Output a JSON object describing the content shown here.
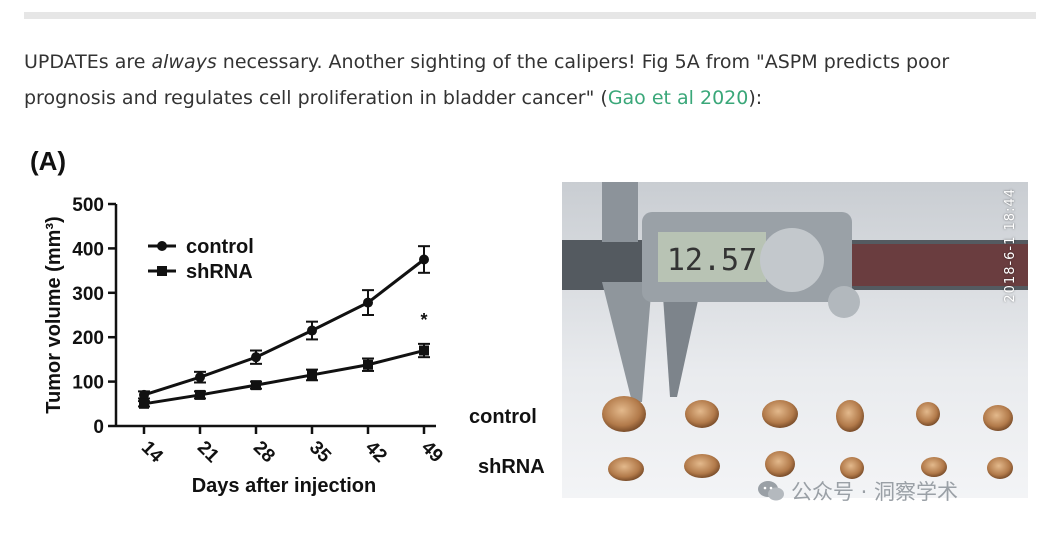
{
  "article": {
    "line1_a": "UPDATEs are ",
    "line1_em": "always",
    "line1_b": " necessary. Another sighting of the calipers! Fig 5A from \"ASPM predicts poor prognosis and regulates cell proliferation in bladder cancer\" (",
    "link_text": "Gao et al 2020",
    "line_end": "):"
  },
  "figure": {
    "panel_label": "(A)",
    "row_labels": [
      "control",
      "shRNA"
    ],
    "photo_stamp": "2018-6-1 18:44",
    "caliper_reading": "12.57"
  },
  "watermark": {
    "text": "公众号 · 洞察学术",
    "icon": "wechat-icon"
  },
  "chart_data": {
    "type": "line",
    "categories": [
      "14",
      "21",
      "28",
      "35",
      "42",
      "49"
    ],
    "xlabel": "Days after injection",
    "ylabel": "Tumor volume (mm³)",
    "ylim": [
      0,
      500
    ],
    "yticks": [
      "0",
      "100",
      "200",
      "300",
      "400",
      "500"
    ],
    "series": [
      {
        "name": "control",
        "marker": "circle",
        "values": [
          70,
          110,
          155,
          215,
          278,
          375
        ],
        "errors": [
          8,
          12,
          15,
          20,
          28,
          30
        ]
      },
      {
        "name": "shRNA",
        "marker": "square",
        "values": [
          50,
          70,
          92,
          115,
          138,
          170
        ],
        "errors": [
          6,
          8,
          8,
          12,
          14,
          15
        ]
      }
    ],
    "annotations": [
      {
        "text": "*",
        "x": "49"
      }
    ],
    "legend_position": "top-left",
    "grid": false
  }
}
